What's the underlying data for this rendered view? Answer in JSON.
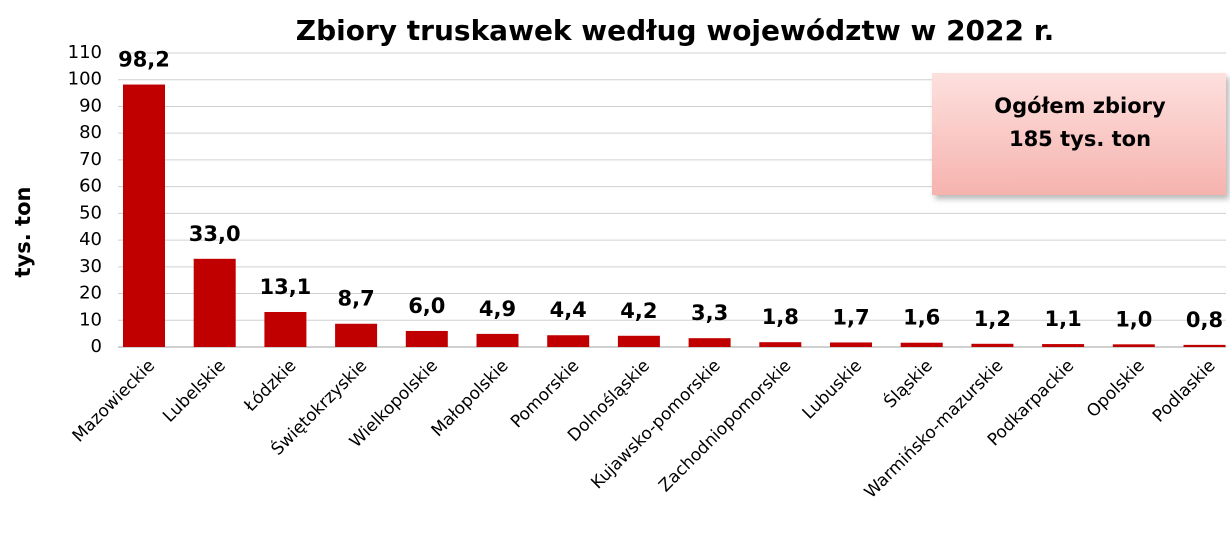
{
  "chart_data": {
    "type": "bar",
    "title": "Zbiory truskawek według województw w 2022 r.",
    "y_label": "tys. ton",
    "annotation": [
      "Ogółem zbiory",
      "185 tys. ton"
    ],
    "categories": [
      "Mazowieckie",
      "Lubelskie",
      "Łódzkie",
      "Świętokrzyskie",
      "Wielkopolskie",
      "Małopolskie",
      "Pomorskie",
      "Dolnośląskie",
      "Kujawsko-pomorskie",
      "Zachodniopomorskie",
      "Lubuskie",
      "Śląskie",
      "Warmińsko-mazurskie",
      "Podkarpackie",
      "Opolskie",
      "Podlaskie"
    ],
    "values": [
      98.2,
      33.0,
      13.1,
      8.7,
      6.0,
      4.9,
      4.4,
      4.2,
      3.3,
      1.8,
      1.7,
      1.6,
      1.2,
      1.1,
      1.0,
      0.8
    ],
    "value_labels": [
      "98,2",
      "33,0",
      "13,1",
      "8,7",
      "6,0",
      "4,9",
      "4,4",
      "4,2",
      "3,3",
      "1,8",
      "1,7",
      "1,6",
      "1,2",
      "1,1",
      "1,0",
      "0,8"
    ],
    "color": "#c00000",
    "ylim": [
      0,
      110
    ],
    "yticks": [
      0,
      10,
      20,
      30,
      40,
      50,
      60,
      70,
      80,
      90,
      100,
      110
    ],
    "grid": true
  }
}
